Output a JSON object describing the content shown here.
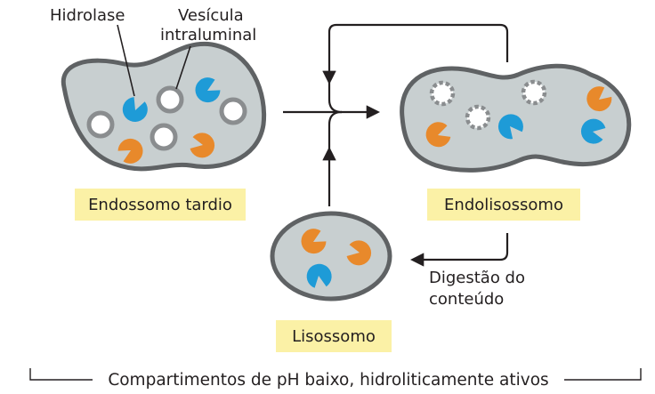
{
  "labels": {
    "hidrolase": "Hidrolase",
    "vesicula_line1": "Vesícula",
    "vesicula_line2": "intraluminal",
    "digestao_line1": "Digestão do",
    "digestao_line2": "conteúdo"
  },
  "compartments": {
    "endossomo_tardio": "Endossomo tardio",
    "endolisossomo": "Endolisossomo",
    "lisossomo": "Lisossomo"
  },
  "footer": "Compartimentos de pH baixo, hidroliticamente ativos",
  "colors": {
    "compartment_fill": "#c8cfd0",
    "compartment_stroke": "#5f6264",
    "vesicle_stroke": "#8a8d8f",
    "hydrolase_blue": "#1e9bd7",
    "hydrolase_orange": "#e8892b",
    "label_box": "#fbf1a6",
    "arrow": "#231f20"
  }
}
